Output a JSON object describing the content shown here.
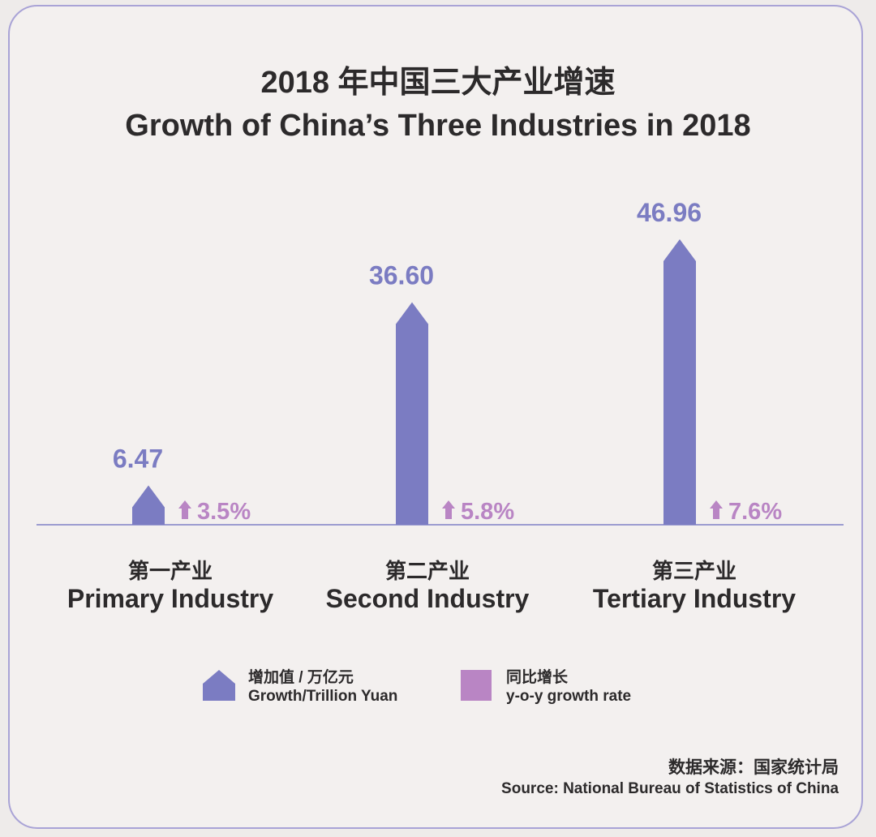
{
  "chart_data": {
    "type": "bar",
    "title": "2018 年中国三大产业增速",
    "subtitle": "Growth of China’s Three Industries in 2018",
    "categories_cn": [
      "第一产业",
      "第二产业",
      "第三产业"
    ],
    "categories": [
      "Primary Industry",
      "Second Industry",
      "Tertiary Industry"
    ],
    "series": [
      {
        "name": "增加值 / 万亿元 Growth/Trillion Yuan",
        "values": [
          6.47,
          36.6,
          46.96
        ],
        "labels": [
          "6.47",
          "36.60",
          "46.96"
        ],
        "color": "#7b7cc2"
      },
      {
        "name": "同比增长 y-o-y growth rate",
        "values": [
          3.5,
          5.8,
          7.6
        ],
        "labels": [
          "3.5%",
          "5.8%",
          "7.6%"
        ],
        "color": "#b985c4"
      }
    ],
    "ylim": [
      0,
      46.96
    ],
    "grid": false,
    "legend_position": "bottom"
  },
  "legend": {
    "growth_cn": "增加值 / 万亿元",
    "growth_en": "Growth/Trillion Yuan",
    "rate_cn": "同比增长",
    "rate_en": "y-o-y growth rate"
  },
  "source": {
    "cn": "数据来源：国家统计局",
    "en": "Source:  National Bureau of Statistics of China"
  },
  "colors": {
    "bar": "#7b7cc2",
    "rate": "#b985c4",
    "baseline": "#9c9cd0",
    "border": "#a9a3d6"
  }
}
